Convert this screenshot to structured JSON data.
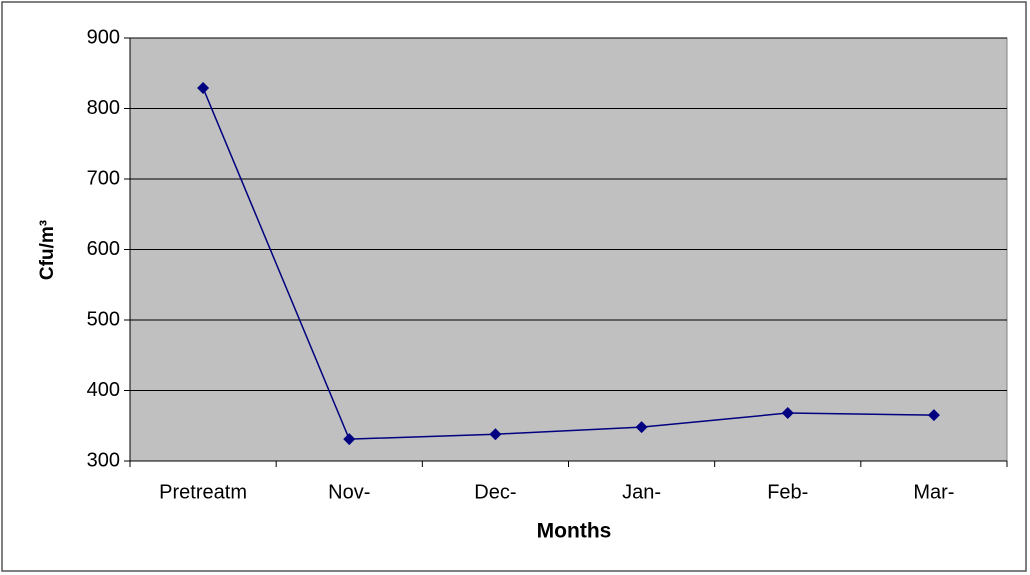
{
  "chart_data": {
    "type": "line",
    "x_label": "Months",
    "y_label": "Cfu/m³",
    "categories": [
      "Pretreatm",
      "Nov-",
      "Dec-",
      "Jan-",
      "Feb-",
      "Mar-"
    ],
    "series": [
      {
        "color": "#000080",
        "values": [
          829,
          331,
          338,
          348,
          368,
          365
        ]
      }
    ],
    "ylim": [
      300,
      900
    ],
    "yticks": [
      300,
      400,
      500,
      600,
      700,
      800,
      900
    ],
    "grid": true
  }
}
